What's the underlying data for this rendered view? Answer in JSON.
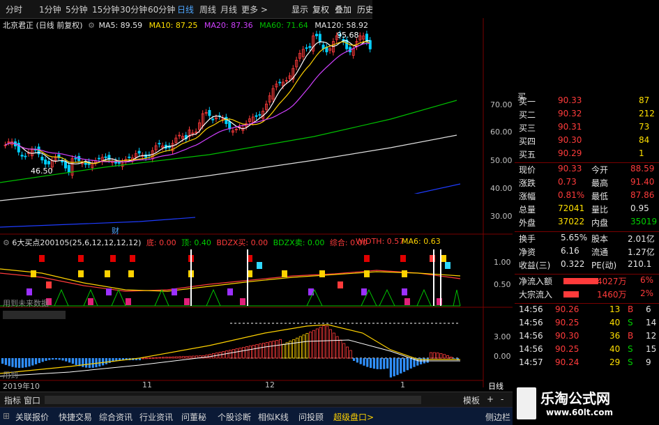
{
  "toolbar": {
    "periods": [
      "分时",
      "1分钟",
      "5分钟",
      "15分钟",
      "30分钟",
      "60分钟",
      "日线",
      "周线",
      "月线",
      "更多 >"
    ],
    "right_items": [
      "显示",
      "复权",
      "叠加",
      "历史"
    ]
  },
  "main_chart": {
    "stock_title": "北京君正 (日线 前复权)",
    "ma5": "MA5: 89.59",
    "ma10": "MA10: 87.25",
    "ma20": "MA20: 87.36",
    "ma60": "MA60: 71.64",
    "ma120": "MA120: 58.92",
    "high_label": "95.68",
    "low_label": "46.50",
    "y_ticks": [
      "70.00",
      "60.00",
      "50.00",
      "40.00",
      "30.00"
    ],
    "markers": [
      "财",
      "□",
      "□"
    ]
  },
  "indicator1": {
    "title": "6大买点200105(25,6,12,12,12,12)",
    "di": "底: 0.00",
    "ding": "顶: 0.40",
    "bdzx_buy": "BDZX买: 0.00",
    "bdzx_sell": "BDZX卖: 0.00",
    "zonghe": "综合: 0.00",
    "width": "WIDTH: 0.57",
    "ma6": "MA6: 0.63",
    "y_ticks": [
      "1.00",
      "0.50"
    ],
    "note": "用到未来数据"
  },
  "indicator2": {
    "y_ticks": [
      "3.00",
      "0.00"
    ],
    "note": "用到"
  },
  "x_axis": {
    "labels": [
      "2019年10",
      "11",
      "12",
      "1"
    ],
    "period_label": "日线"
  },
  "quote": {
    "buy_rows": [
      {
        "label": "买一",
        "price": "90.33",
        "vol": "87"
      },
      {
        "label": "买二",
        "price": "90.32",
        "vol": "212"
      },
      {
        "label": "买三",
        "price": "90.31",
        "vol": "73"
      },
      {
        "label": "买四",
        "price": "90.30",
        "vol": "84"
      },
      {
        "label": "买五",
        "price": "90.29",
        "vol": "1"
      }
    ],
    "stats": [
      {
        "l1": "现价",
        "v1": "90.33",
        "l2": "今开",
        "v2": "88.59"
      },
      {
        "l1": "涨跌",
        "v1": "0.73",
        "l2": "最高",
        "v2": "91.40"
      },
      {
        "l1": "涨幅",
        "v1": "0.81%",
        "l2": "最低",
        "v2": "87.86"
      },
      {
        "l1": "总量",
        "v1": "72041",
        "l2": "量比",
        "v2": "0.95"
      },
      {
        "l1": "外盘",
        "v1": "37022",
        "l2": "内盘",
        "v2": "35019"
      }
    ],
    "stats2": [
      {
        "l1": "换手",
        "v1": "5.65%",
        "l2": "股本",
        "v2": "2.01亿"
      },
      {
        "l1": "净资",
        "v1": "6.16",
        "l2": "流通",
        "v2": "1.27亿"
      },
      {
        "l1": "收益(三)",
        "v1": "0.322",
        "l2": "PE(动)",
        "v2": "210.1"
      }
    ],
    "flows": [
      {
        "label": "净流入额",
        "value": "4027万",
        "pct": "6%"
      },
      {
        "label": "大宗流入",
        "value": "1460万",
        "pct": "2%"
      }
    ],
    "ticks": [
      {
        "time": "14:56",
        "price": "90.26",
        "vol": "13",
        "side": "B",
        "n": "6"
      },
      {
        "time": "14:56",
        "price": "90.25",
        "vol": "40",
        "side": "S",
        "n": "14"
      },
      {
        "time": "14:56",
        "price": "90.30",
        "vol": "36",
        "side": "B",
        "n": "12"
      },
      {
        "time": "14:56",
        "price": "90.25",
        "vol": "40",
        "side": "S",
        "n": "15"
      },
      {
        "time": "14:57",
        "price": "90.24",
        "vol": "29",
        "side": "S",
        "n": "9"
      }
    ]
  },
  "bottom1": {
    "items": [
      "指标",
      "窗口"
    ],
    "right_items": [
      "模板",
      "+",
      "-"
    ]
  },
  "bottom2": {
    "tabs": [
      "关联报价",
      "快捷交易",
      "综合资讯",
      "行业资讯",
      "问董秘",
      "个股诊断",
      "相似K线",
      "问投顾",
      "超级盘口>"
    ],
    "right": "侧边栏"
  },
  "brand": {
    "name": "乐淘公式网",
    "url": "www.60lt.com"
  },
  "colors": {
    "up": "#ff3b3b",
    "down": "#00d0ff",
    "ma5": "#ffffff",
    "ma10": "#ffd200",
    "ma20": "#d040ff",
    "ma60": "#00c000",
    "ma120": "#a0a0a0"
  }
}
